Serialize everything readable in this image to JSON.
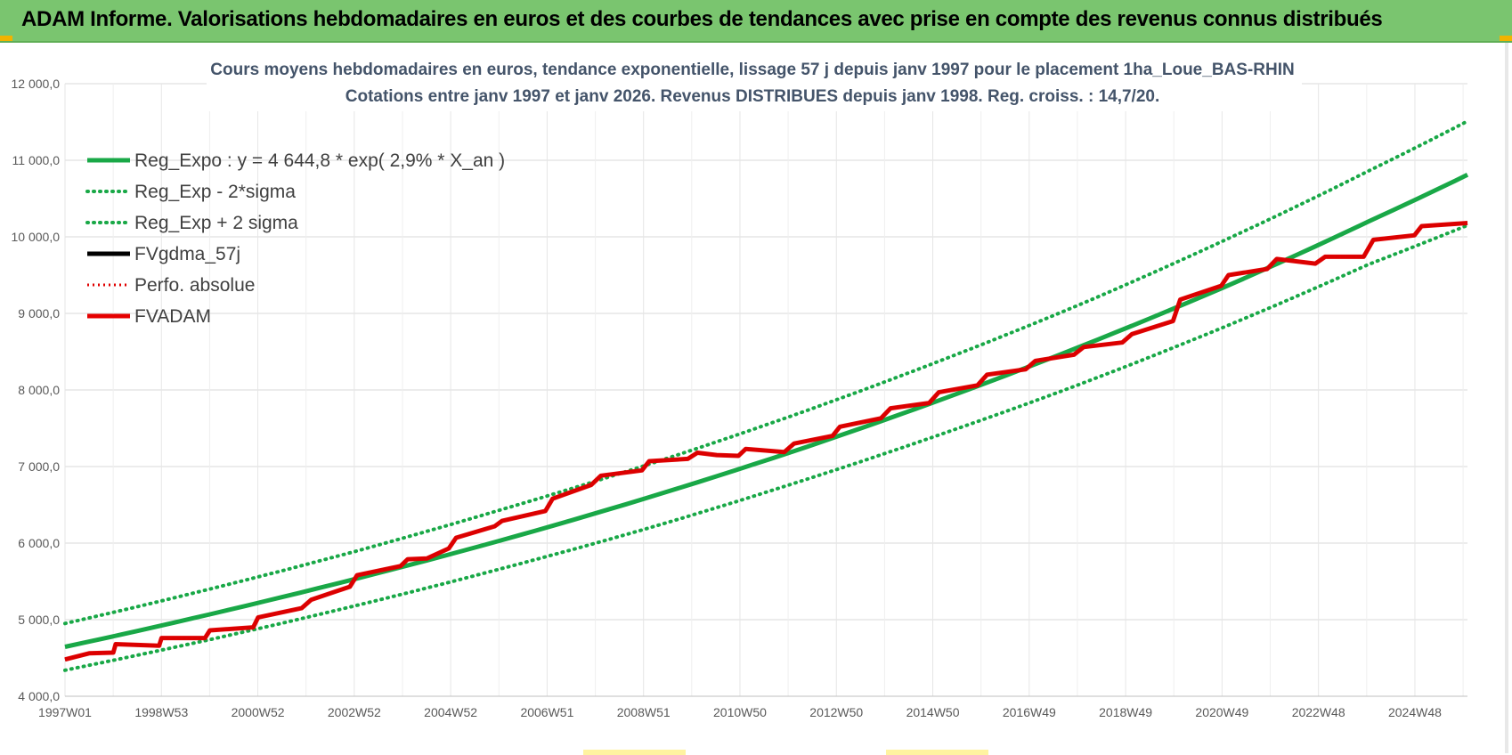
{
  "banner": {
    "title": "ADAM Informe. Valorisations hebdomadaires en euros et des courbes de tendances avec prise en compte des revenus connus distribués"
  },
  "colors": {
    "banner_bg": "#7ac56f",
    "reg_expo": "#19a847",
    "sigma_bands": "#19a847",
    "fvgdma": "#000000",
    "perfo": "#e00000",
    "fvadam": "#e60000"
  },
  "chart_data": {
    "type": "line",
    "title_lines": [
      "Cours moyens hebdomadaires en euros, tendance exponentielle, lissage 57 j depuis janv 1997 pour le placement 1ha_Loue_BAS-RHIN",
      "Cotations entre janv 1997 et janv 2026. Revenus DISTRIBUES depuis janv 1998. Reg. croiss. : 14,7/20."
    ],
    "xlabel": "",
    "ylabel": "",
    "x_tick_labels": [
      "1997W01",
      "1998W53",
      "2000W52",
      "2002W52",
      "2004W52",
      "2006W51",
      "2008W51",
      "2010W50",
      "2012W50",
      "2014W50",
      "2016W49",
      "2018W49",
      "2020W49",
      "2022W48",
      "2024W48"
    ],
    "x_range_years": [
      1997.0,
      2026.05
    ],
    "ylim": [
      4000,
      12000
    ],
    "y_tick_values": [
      4000,
      5000,
      6000,
      7000,
      8000,
      9000,
      10000,
      11000,
      12000
    ],
    "y_tick_labels": [
      "4 000,0",
      "5 000,0",
      "6 000,0",
      "7 000,0",
      "8 000,0",
      "9 000,0",
      "10 000,0",
      "11 000,0",
      "12 000,0"
    ],
    "grid": true,
    "legend_position": "top-left",
    "legend": [
      {
        "label": "Reg_Expo : y = 4 644,8 * exp( 2,9% *  X_an )",
        "style": "solid",
        "color": "#19a847"
      },
      {
        "label": "Reg_Exp - 2*sigma",
        "style": "dotted",
        "color": "#19a847"
      },
      {
        "label": "Reg_Exp + 2 sigma",
        "style": "dotted",
        "color": "#19a847"
      },
      {
        "label": "FVgdma_57j",
        "style": "solid",
        "color": "#000000"
      },
      {
        "label": "Perfo. absolue",
        "style": "dotted",
        "color": "#e00000"
      },
      {
        "label": "FVADAM",
        "style": "solid",
        "color": "#e60000"
      }
    ],
    "series": [
      {
        "name": "Reg_Expo : y = 4 644,8 * exp( 2,9% *  X_an )",
        "x": [
          1997.0,
          2000.0,
          2003.0,
          2006.0,
          2009.0,
          2012.0,
          2015.0,
          2018.0,
          2021.0,
          2024.0,
          2026.05
        ],
        "values": [
          4645,
          5070,
          5530,
          6030,
          6580,
          7180,
          7840,
          8560,
          9340,
          10200,
          10810
        ]
      },
      {
        "name": "Reg_Exp - 2*sigma",
        "x": [
          1997.0,
          2000.0,
          2003.0,
          2006.0,
          2009.0,
          2012.0,
          2015.0,
          2018.0,
          2021.0,
          2024.0,
          2026.05
        ],
        "values": [
          4340,
          4740,
          5180,
          5660,
          6180,
          6760,
          7390,
          8070,
          8820,
          9640,
          10150
        ]
      },
      {
        "name": "Reg_Exp + 2 sigma",
        "x": [
          1997.0,
          2000.0,
          2003.0,
          2006.0,
          2009.0,
          2012.0,
          2015.0,
          2018.0,
          2021.0,
          2024.0,
          2026.05
        ],
        "values": [
          4950,
          5400,
          5890,
          6430,
          7010,
          7650,
          8350,
          9110,
          9950,
          10860,
          11510
        ]
      },
      {
        "name": "FVADAM",
        "x": [
          1997.0,
          1997.5,
          1998.0,
          1998.05,
          1998.95,
          1999.0,
          1999.9,
          2000.0,
          2000.9,
          2001.0,
          2001.9,
          2002.1,
          2002.9,
          2003.05,
          2003.95,
          2004.1,
          2004.5,
          2004.95,
          2005.1,
          2005.9,
          2006.05,
          2006.95,
          2007.1,
          2007.9,
          2008.1,
          2008.95,
          2009.1,
          2009.9,
          2010.1,
          2010.5,
          2010.95,
          2011.1,
          2011.9,
          2012.1,
          2012.9,
          2013.05,
          2013.9,
          2014.1,
          2014.9,
          2015.1,
          2015.9,
          2016.1,
          2016.9,
          2017.1,
          2017.9,
          2018.1,
          2018.9,
          2019.1,
          2019.95,
          2020.1,
          2020.95,
          2021.1,
          2021.9,
          2022.1,
          2022.9,
          2023.1,
          2023.9,
          2024.1,
          2024.95,
          2025.1,
          2026.05
        ],
        "values": [
          4480,
          4560,
          4570,
          4680,
          4660,
          4760,
          4760,
          4860,
          4900,
          5030,
          5150,
          5260,
          5430,
          5580,
          5700,
          5790,
          5800,
          5930,
          6070,
          6220,
          6290,
          6420,
          6580,
          6760,
          6880,
          6950,
          7070,
          7100,
          7180,
          7150,
          7140,
          7230,
          7190,
          7300,
          7400,
          7520,
          7630,
          7760,
          7830,
          7970,
          8060,
          8200,
          8270,
          8380,
          8460,
          8560,
          8620,
          8730,
          8900,
          9180,
          9360,
          9500,
          9580,
          9710,
          9650,
          9740,
          9740,
          9960,
          10020,
          10140,
          10180
        ]
      }
    ]
  }
}
